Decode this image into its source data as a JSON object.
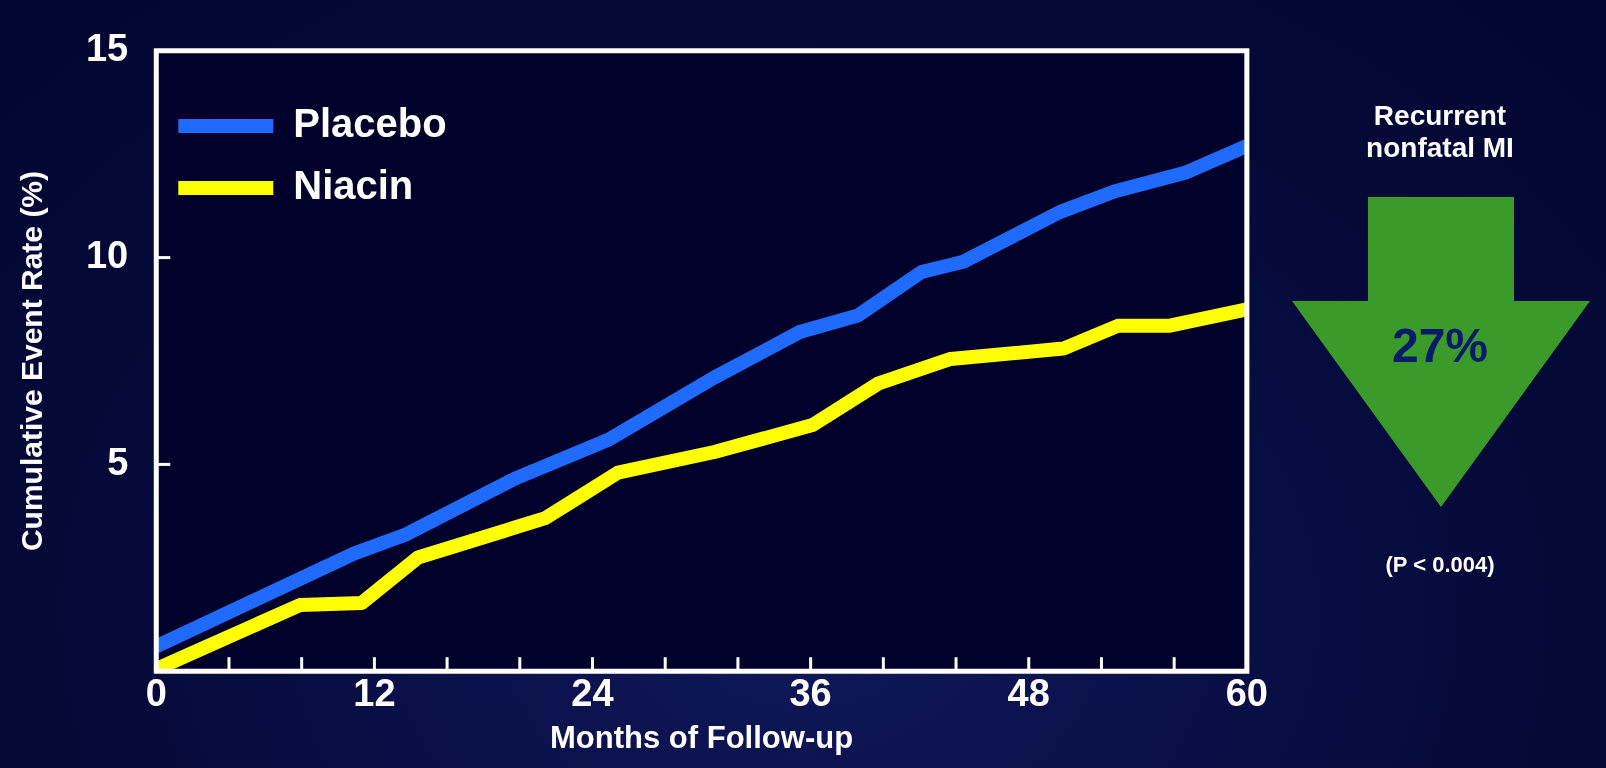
{
  "chart_data": {
    "type": "line",
    "xlabel": "Months of Follow-up",
    "ylabel": "Cumulative Event Rate (%)",
    "xlim": [
      0,
      60
    ],
    "ylim": [
      0,
      15
    ],
    "xticks": [
      0,
      {
        "value": 4,
        "label": null
      },
      {
        "value": 8,
        "label": null
      },
      12,
      {
        "value": 16,
        "label": null
      },
      {
        "value": 20,
        "label": null
      },
      24,
      {
        "value": 28,
        "label": null
      },
      {
        "value": 32,
        "label": null
      },
      36,
      {
        "value": 40,
        "label": null
      },
      {
        "value": 44,
        "label": null
      },
      48,
      {
        "value": 52,
        "label": null
      },
      {
        "value": 56,
        "label": null
      },
      60
    ],
    "yticks": [
      5,
      10,
      15
    ],
    "grid": false,
    "legend": "top left",
    "marker": "none",
    "line_style": "solid",
    "series": [
      {
        "name": "Placebo",
        "color": "#1f6bff",
        "x": [
          0,
          10.9,
          13.7,
          19.7,
          24.9,
          30.7,
          35.4,
          38.6,
          42.1,
          44.4,
          49.7,
          52.7,
          56.6,
          60
        ],
        "values": [
          0.6,
          2.85,
          3.3,
          4.65,
          5.6,
          7.1,
          8.2,
          8.6,
          9.65,
          9.9,
          11.1,
          11.6,
          12.05,
          12.7
        ]
      },
      {
        "name": "Niacin",
        "color": "#ffff00",
        "x": [
          0,
          7.9,
          11.3,
          14.4,
          21.4,
          25.4,
          30.7,
          36.1,
          39.7,
          43.7,
          49.9,
          52.9,
          55.7,
          60
        ],
        "values": [
          0.05,
          1.6,
          1.65,
          2.75,
          3.7,
          4.8,
          5.3,
          5.95,
          6.95,
          7.55,
          7.8,
          8.35,
          8.35,
          8.75
        ]
      }
    ],
    "annotations": [
      "Recurrent nonfatal MI",
      "27%",
      "(P < 0.004)"
    ]
  }
}
